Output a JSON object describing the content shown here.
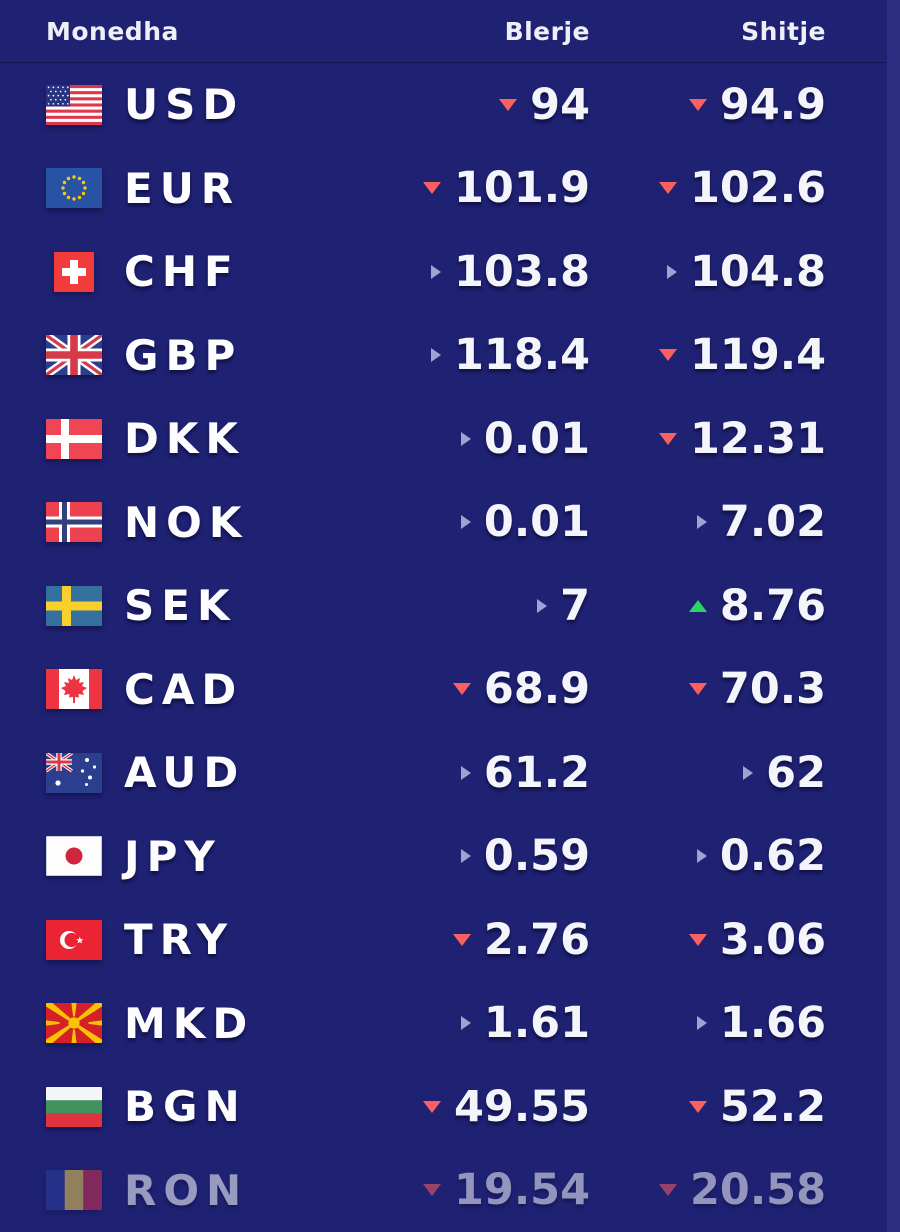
{
  "table": {
    "headers": {
      "currency": "Monedha",
      "buy": "Blerje",
      "sell": "Shitje"
    },
    "rows": [
      {
        "code": "USD",
        "flag": "usd",
        "buy": {
          "value": "94",
          "trend": "down"
        },
        "sell": {
          "value": "94.9",
          "trend": "down"
        },
        "faded": false
      },
      {
        "code": "EUR",
        "flag": "eur",
        "buy": {
          "value": "101.9",
          "trend": "down"
        },
        "sell": {
          "value": "102.6",
          "trend": "down"
        },
        "faded": false
      },
      {
        "code": "CHF",
        "flag": "chf",
        "buy": {
          "value": "103.8",
          "trend": "flat"
        },
        "sell": {
          "value": "104.8",
          "trend": "flat"
        },
        "faded": false
      },
      {
        "code": "GBP",
        "flag": "gbp",
        "buy": {
          "value": "118.4",
          "trend": "flat"
        },
        "sell": {
          "value": "119.4",
          "trend": "down"
        },
        "faded": false
      },
      {
        "code": "DKK",
        "flag": "dkk",
        "buy": {
          "value": "0.01",
          "trend": "flat"
        },
        "sell": {
          "value": "12.31",
          "trend": "down"
        },
        "faded": false
      },
      {
        "code": "NOK",
        "flag": "nok",
        "buy": {
          "value": "0.01",
          "trend": "flat"
        },
        "sell": {
          "value": "7.02",
          "trend": "flat"
        },
        "faded": false
      },
      {
        "code": "SEK",
        "flag": "sek",
        "buy": {
          "value": "7",
          "trend": "flat"
        },
        "sell": {
          "value": "8.76",
          "trend": "up"
        },
        "faded": false
      },
      {
        "code": "CAD",
        "flag": "cad",
        "buy": {
          "value": "68.9",
          "trend": "down"
        },
        "sell": {
          "value": "70.3",
          "trend": "down"
        },
        "faded": false
      },
      {
        "code": "AUD",
        "flag": "aud",
        "buy": {
          "value": "61.2",
          "trend": "flat"
        },
        "sell": {
          "value": "62",
          "trend": "flat"
        },
        "faded": false
      },
      {
        "code": "JPY",
        "flag": "jpy",
        "buy": {
          "value": "0.59",
          "trend": "flat"
        },
        "sell": {
          "value": "0.62",
          "trend": "flat"
        },
        "faded": false
      },
      {
        "code": "TRY",
        "flag": "try",
        "buy": {
          "value": "2.76",
          "trend": "down"
        },
        "sell": {
          "value": "3.06",
          "trend": "down"
        },
        "faded": false
      },
      {
        "code": "MKD",
        "flag": "mkd",
        "buy": {
          "value": "1.61",
          "trend": "flat"
        },
        "sell": {
          "value": "1.66",
          "trend": "flat"
        },
        "faded": false
      },
      {
        "code": "BGN",
        "flag": "bgn",
        "buy": {
          "value": "49.55",
          "trend": "down"
        },
        "sell": {
          "value": "52.2",
          "trend": "down"
        },
        "faded": false
      },
      {
        "code": "RON",
        "flag": "ron",
        "buy": {
          "value": "19.54",
          "trend": "down"
        },
        "sell": {
          "value": "20.58",
          "trend": "down"
        },
        "faded": true
      }
    ]
  },
  "icons": {
    "down": "trend-down-icon",
    "up": "trend-up-icon",
    "flat": "trend-flat-icon"
  },
  "colors": {
    "background": "#1f2173",
    "scrollbar": "#2b2e80",
    "trend_down": "#f9605f",
    "trend_up": "#2ed368",
    "trend_flat": "#9ba5d2",
    "text": "#f4f5fb"
  }
}
